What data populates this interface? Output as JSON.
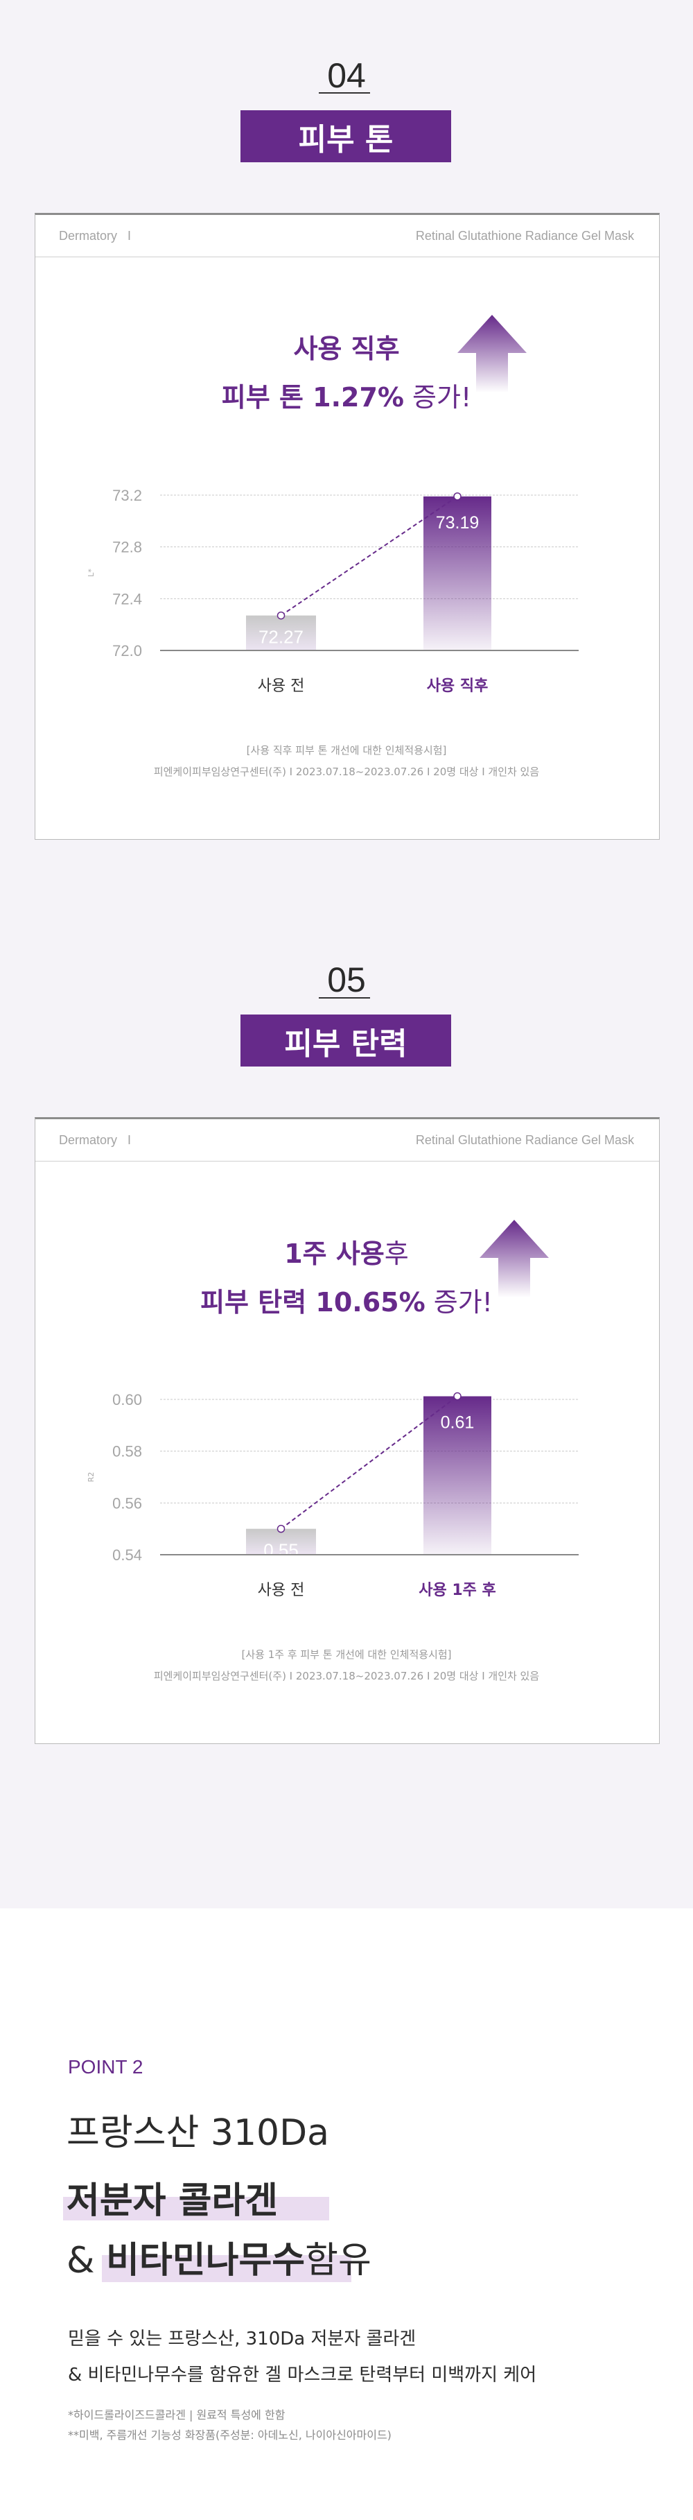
{
  "colors": {
    "accent": "#662a8a",
    "background": "#f5f3f8",
    "highlight": "#eadcf0",
    "before_bar": "#c8c8c8"
  },
  "sections": [
    {
      "number": "04",
      "badge": "피부 톤",
      "card_brand": "Dermatory   I",
      "card_product": "Retinal Glutathione Radiance Gel Mask",
      "headline_line1_bold": "사용 직후",
      "headline_line1_regular": "",
      "headline_line2_bold": "피부 톤 1.27%",
      "headline_line2_regular": " 증가!",
      "arrow_icon": "arrow-up-gradient-icon",
      "source_title": "[사용 직후 피부 톤 개선에 대한 인체적용시험]",
      "source_detail": "피엔케이피부임상연구센터(주) I 2023.07.18~2023.07.26 I 20명 대상 I 개인차 있음"
    },
    {
      "number": "05",
      "badge": "피부 탄력",
      "card_brand": "Dermatory   I",
      "card_product": "Retinal Glutathione Radiance Gel Mask",
      "headline_line1_bold": "1주 사용",
      "headline_line1_regular": "후",
      "headline_line2_bold": "피부 탄력 10.65%",
      "headline_line2_regular": " 증가!",
      "arrow_icon": "arrow-up-gradient-icon",
      "source_title": "[사용 1주 후 피부 톤 개선에 대한 인체적용시험]",
      "source_detail": "피엔케이피부임상연구센터(주) I 2023.07.18~2023.07.26 I 20명 대상 I 개인차 있음"
    }
  ],
  "chart_data": [
    {
      "type": "bar",
      "ylabel": "L*",
      "categories": [
        "사용 전",
        "사용 직후"
      ],
      "values": [
        72.27,
        73.19
      ],
      "value_labels": [
        "72.27",
        "73.19"
      ],
      "ylim": [
        72.0,
        73.2
      ],
      "yticks": [
        "72.0",
        "72.4",
        "72.8",
        "73.2"
      ],
      "grid": true,
      "connector_line": "dashed",
      "highlight_category": "사용 직후"
    },
    {
      "type": "bar",
      "ylabel": "R2",
      "categories": [
        "사용 전",
        "사용 1주 후"
      ],
      "values": [
        0.55,
        0.61
      ],
      "value_labels": [
        "0.55",
        "0.61"
      ],
      "ylim": [
        0.54,
        0.6
      ],
      "yticks": [
        "0.54",
        "0.56",
        "0.58",
        "0.60"
      ],
      "grid": true,
      "connector_line": "dashed",
      "highlight_category": "사용 1주 후"
    }
  ],
  "point": {
    "label": "POINT 2",
    "title_line1": "프랑스산 310Da",
    "title_line2": "저분자 콜라겐",
    "title_line3_prefix": "& ",
    "title_line3_highlight": "비타민나무수",
    "title_line3_suffix": "함유",
    "body_line1": "믿을 수 있는 프랑스산, 310Da 저분자 콜라겐",
    "body_line2": "& 비타민나무수를 함유한 겔 마스크로 탄력부터 미백까지 케어",
    "footnote1": "*하이드롤라이즈드콜라겐  |  원료적 특성에 한함",
    "footnote2": "**미백, 주름개선 기능성 화장품(주성분: 아데노신, 나이아신아마이드)"
  }
}
